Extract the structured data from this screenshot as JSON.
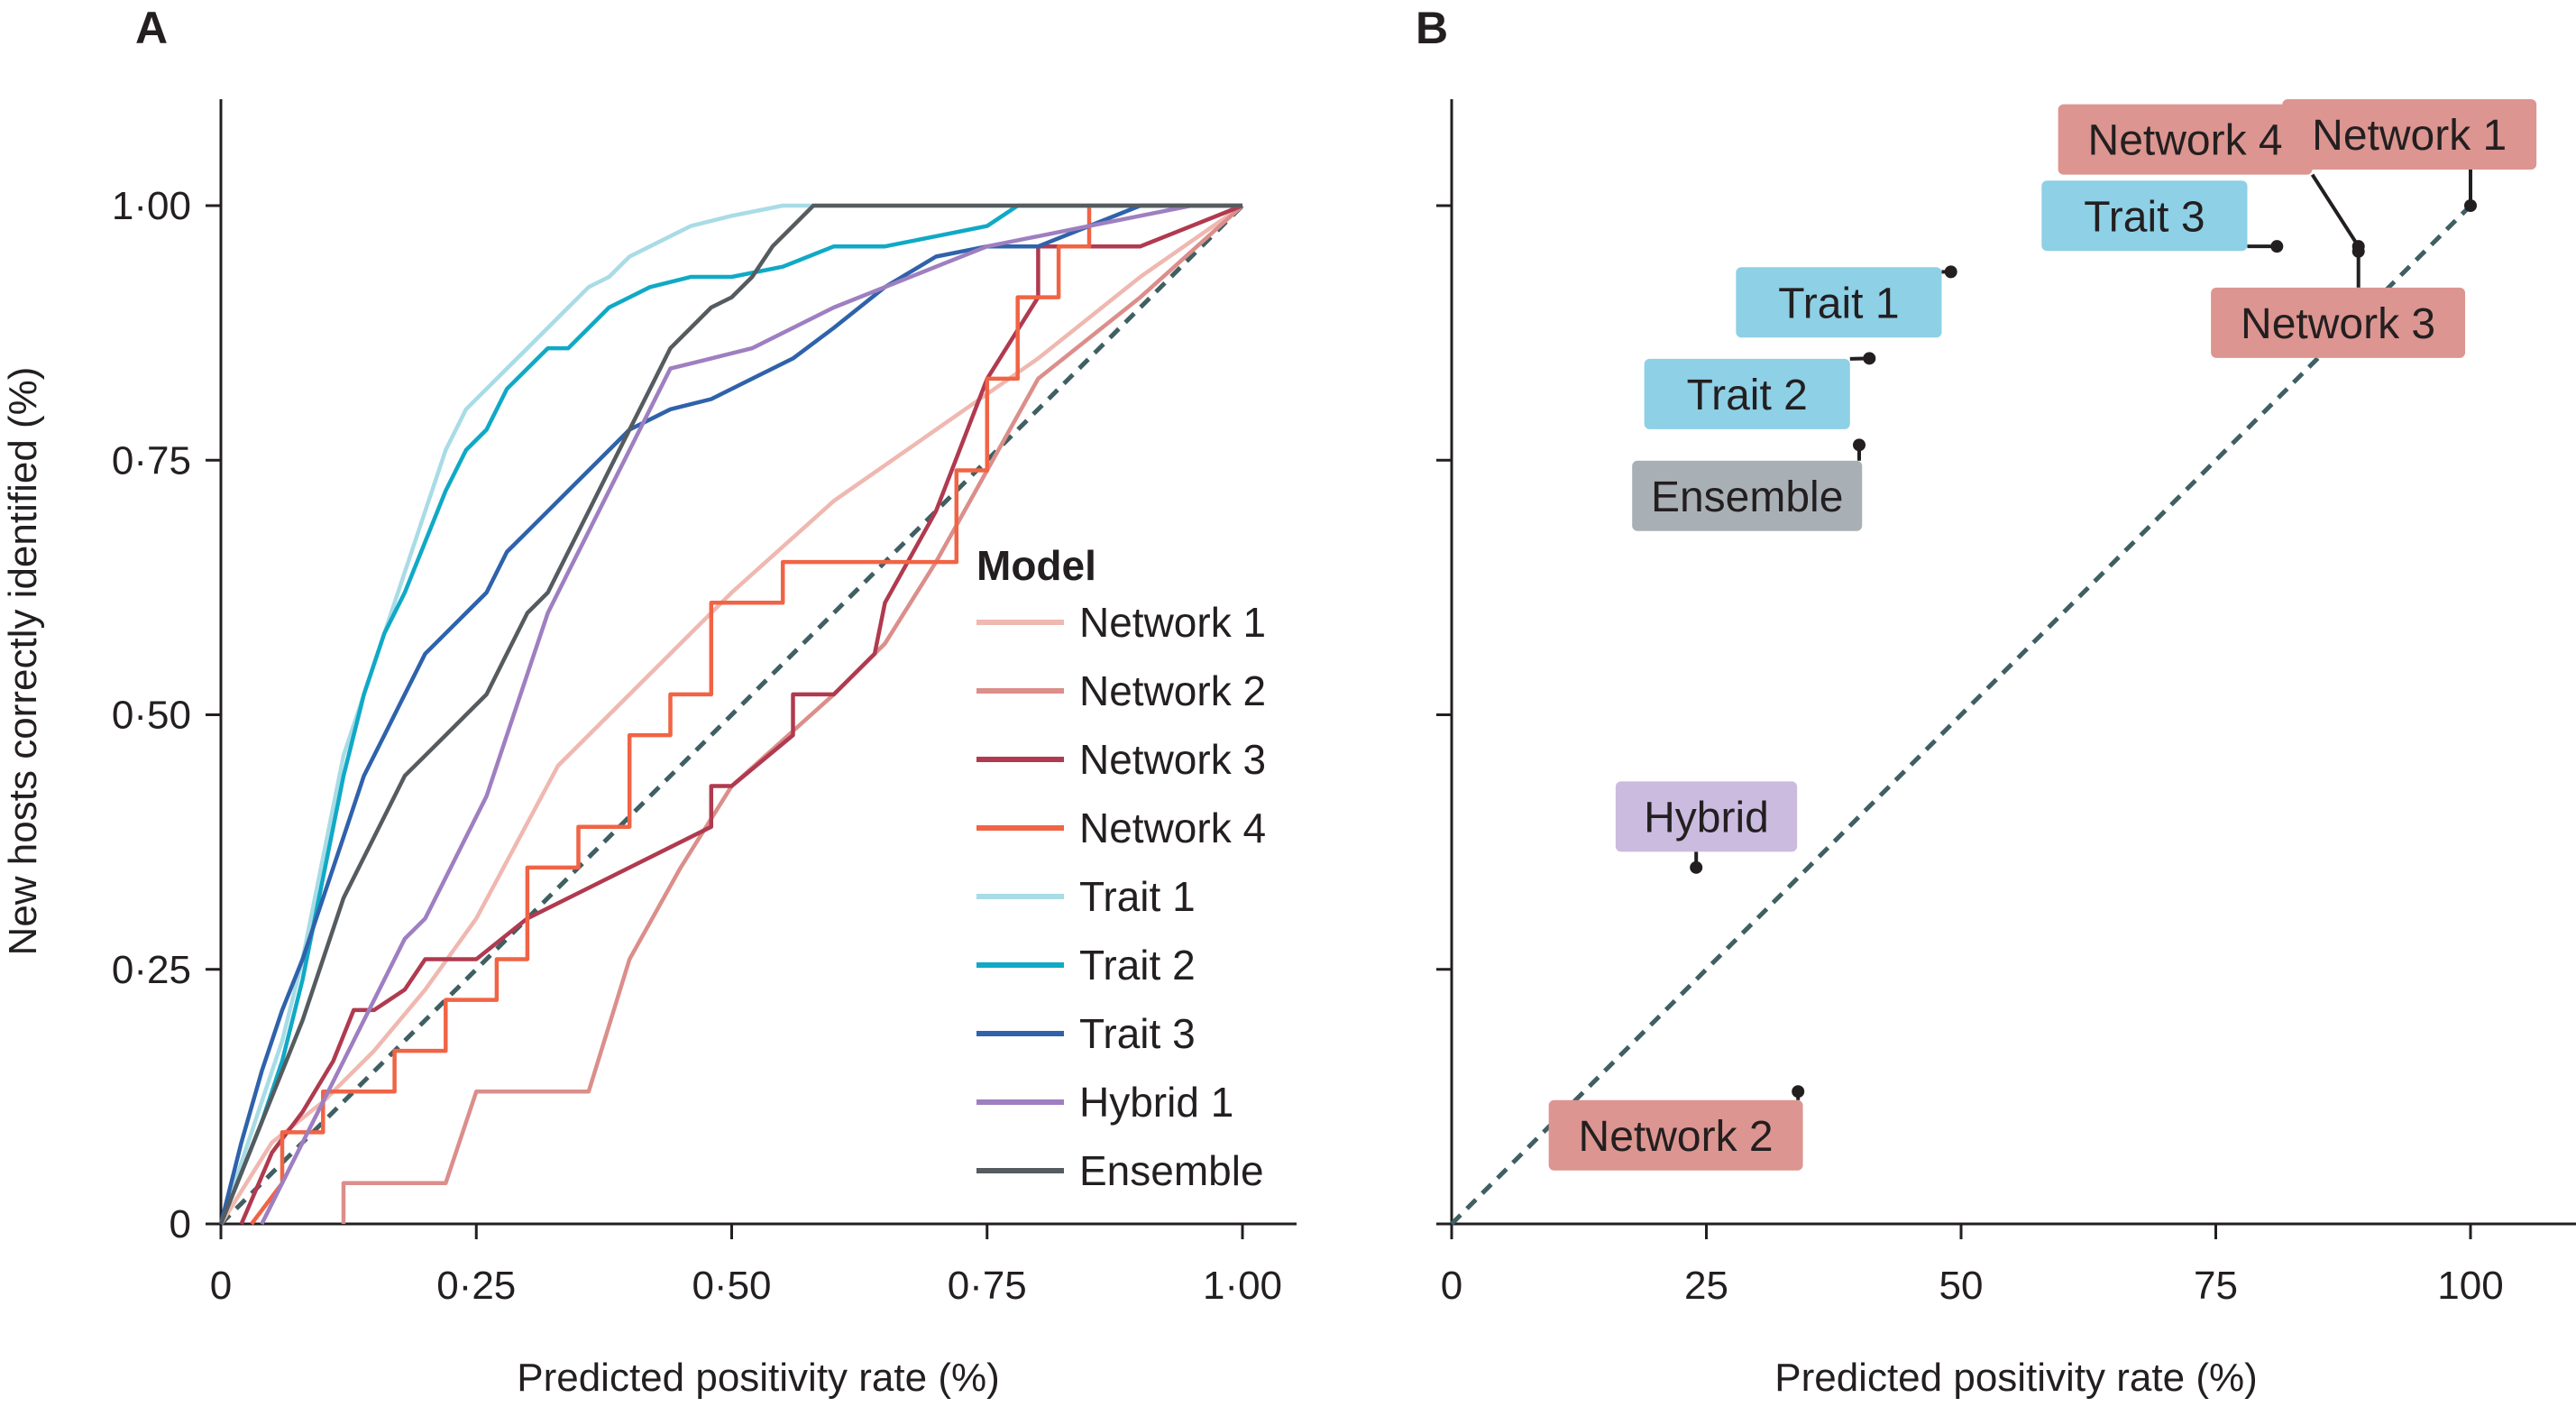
{
  "chart_data": [
    {
      "panel": "A",
      "type": "line",
      "xlabel": "Predicted positivity rate (%)",
      "ylabel": "New hosts correctly identified (%)",
      "xlim": [
        0,
        1
      ],
      "ylim": [
        0,
        1
      ],
      "xticks": [
        0,
        0.25,
        0.5,
        0.75,
        1.0
      ],
      "xtick_labels": [
        "0",
        "0·25",
        "0·50",
        "0·75",
        "1·00"
      ],
      "yticks": [
        0,
        0.25,
        0.5,
        0.75,
        1.0
      ],
      "ytick_labels": [
        "0",
        "0·25",
        "0·50",
        "0·75",
        "1·00"
      ],
      "legend": {
        "title": "Model",
        "placement": "right"
      },
      "reference_line": {
        "style": "dashed",
        "color": "#3f5f63",
        "from": [
          0,
          0
        ],
        "to": [
          1,
          1
        ]
      },
      "series": [
        {
          "name": "Network 1",
          "color": "#efb8b0",
          "x": [
            0,
            0.05,
            0.1,
            0.15,
            0.2,
            0.25,
            0.33,
            0.4,
            0.5,
            0.6,
            0.7,
            0.8,
            0.9,
            1.0
          ],
          "y": [
            0,
            0.08,
            0.12,
            0.17,
            0.23,
            0.3,
            0.45,
            0.52,
            0.62,
            0.71,
            0.78,
            0.85,
            0.93,
            1.0
          ]
        },
        {
          "name": "Network 2",
          "color": "#db8e8a",
          "x": [
            0.12,
            0.12,
            0.22,
            0.25,
            0.36,
            0.4,
            0.45,
            0.5,
            0.6,
            0.65,
            0.7,
            0.75,
            0.8,
            0.9,
            1.0
          ],
          "y": [
            0,
            0.04,
            0.04,
            0.13,
            0.13,
            0.26,
            0.35,
            0.43,
            0.52,
            0.57,
            0.65,
            0.74,
            0.83,
            0.91,
            1.0
          ]
        },
        {
          "name": "Network 3",
          "color": "#b03a4f",
          "x": [
            0.02,
            0.05,
            0.08,
            0.11,
            0.13,
            0.15,
            0.18,
            0.2,
            0.25,
            0.3,
            0.4,
            0.48,
            0.48,
            0.5,
            0.56,
            0.56,
            0.6,
            0.64,
            0.65,
            0.7,
            0.75,
            0.8,
            0.8,
            0.9,
            1.0
          ],
          "y": [
            0,
            0.07,
            0.11,
            0.16,
            0.21,
            0.21,
            0.23,
            0.26,
            0.26,
            0.3,
            0.35,
            0.39,
            0.43,
            0.43,
            0.48,
            0.52,
            0.52,
            0.56,
            0.61,
            0.7,
            0.83,
            0.91,
            0.96,
            0.96,
            1.0
          ]
        },
        {
          "name": "Network 4",
          "color": "#f06445",
          "x": [
            0.03,
            0.06,
            0.06,
            0.1,
            0.1,
            0.17,
            0.17,
            0.22,
            0.22,
            0.27,
            0.27,
            0.3,
            0.3,
            0.35,
            0.35,
            0.4,
            0.4,
            0.44,
            0.44,
            0.48,
            0.48,
            0.55,
            0.55,
            0.72,
            0.72,
            0.75,
            0.75,
            0.78,
            0.78,
            0.82,
            0.82,
            0.85,
            0.85,
            1.0
          ],
          "y": [
            0,
            0.04,
            0.09,
            0.09,
            0.13,
            0.13,
            0.17,
            0.17,
            0.22,
            0.22,
            0.26,
            0.26,
            0.35,
            0.35,
            0.39,
            0.39,
            0.48,
            0.48,
            0.52,
            0.52,
            0.61,
            0.61,
            0.65,
            0.65,
            0.74,
            0.74,
            0.83,
            0.83,
            0.91,
            0.91,
            0.96,
            0.96,
            1.0,
            1.0
          ]
        },
        {
          "name": "Trait 1",
          "color": "#a8dce6",
          "x": [
            0,
            0.02,
            0.04,
            0.06,
            0.08,
            0.1,
            0.12,
            0.14,
            0.16,
            0.18,
            0.2,
            0.22,
            0.24,
            0.26,
            0.28,
            0.3,
            0.32,
            0.34,
            0.36,
            0.38,
            0.4,
            0.42,
            0.44,
            0.46,
            0.5,
            0.55,
            0.6,
            0.65,
            0.7,
            0.75,
            0.8,
            0.9,
            1.0
          ],
          "y": [
            0,
            0.06,
            0.12,
            0.18,
            0.26,
            0.36,
            0.46,
            0.52,
            0.58,
            0.64,
            0.7,
            0.76,
            0.8,
            0.82,
            0.84,
            0.86,
            0.88,
            0.9,
            0.92,
            0.93,
            0.95,
            0.96,
            0.97,
            0.98,
            0.99,
            1.0,
            1.0,
            1.0,
            1.0,
            1.0,
            1.0,
            1.0,
            1.0
          ]
        },
        {
          "name": "Trait 2",
          "color": "#10a9c6",
          "x": [
            0,
            0.02,
            0.04,
            0.06,
            0.08,
            0.1,
            0.12,
            0.14,
            0.16,
            0.18,
            0.2,
            0.22,
            0.24,
            0.26,
            0.28,
            0.3,
            0.32,
            0.34,
            0.36,
            0.38,
            0.4,
            0.42,
            0.46,
            0.5,
            0.55,
            0.6,
            0.65,
            0.7,
            0.75,
            0.78,
            0.8,
            0.85,
            0.9,
            1.0
          ],
          "y": [
            0,
            0.05,
            0.1,
            0.16,
            0.24,
            0.34,
            0.44,
            0.52,
            0.58,
            0.62,
            0.67,
            0.72,
            0.76,
            0.78,
            0.82,
            0.84,
            0.86,
            0.86,
            0.88,
            0.9,
            0.91,
            0.92,
            0.93,
            0.93,
            0.94,
            0.96,
            0.96,
            0.97,
            0.98,
            1.0,
            1.0,
            1.0,
            1.0,
            1.0
          ]
        },
        {
          "name": "Trait 3",
          "color": "#2f62ab",
          "x": [
            0,
            0.02,
            0.04,
            0.06,
            0.08,
            0.1,
            0.12,
            0.14,
            0.16,
            0.18,
            0.2,
            0.22,
            0.24,
            0.26,
            0.28,
            0.3,
            0.32,
            0.34,
            0.36,
            0.38,
            0.4,
            0.44,
            0.48,
            0.52,
            0.56,
            0.6,
            0.65,
            0.7,
            0.75,
            0.8,
            0.85,
            0.9,
            1.0
          ],
          "y": [
            0,
            0.08,
            0.15,
            0.21,
            0.26,
            0.32,
            0.38,
            0.44,
            0.48,
            0.52,
            0.56,
            0.58,
            0.6,
            0.62,
            0.66,
            0.68,
            0.7,
            0.72,
            0.74,
            0.76,
            0.78,
            0.8,
            0.81,
            0.83,
            0.85,
            0.88,
            0.92,
            0.95,
            0.96,
            0.96,
            0.98,
            1.0,
            1.0
          ]
        },
        {
          "name": "Hybrid 1",
          "color": "#9e7fc0",
          "x": [
            0.04,
            0.06,
            0.08,
            0.1,
            0.12,
            0.14,
            0.16,
            0.18,
            0.2,
            0.22,
            0.24,
            0.26,
            0.28,
            0.3,
            0.32,
            0.34,
            0.36,
            0.38,
            0.4,
            0.42,
            0.44,
            0.48,
            0.52,
            0.56,
            0.6,
            0.65,
            0.7,
            0.75,
            0.8,
            0.85,
            0.9,
            0.95,
            1.0
          ],
          "y": [
            0,
            0.04,
            0.08,
            0.12,
            0.16,
            0.2,
            0.24,
            0.28,
            0.3,
            0.34,
            0.38,
            0.42,
            0.48,
            0.54,
            0.6,
            0.64,
            0.68,
            0.72,
            0.76,
            0.8,
            0.84,
            0.85,
            0.86,
            0.88,
            0.9,
            0.92,
            0.94,
            0.96,
            0.97,
            0.98,
            0.99,
            1.0,
            1.0
          ]
        },
        {
          "name": "Ensemble",
          "color": "#555b5f",
          "x": [
            0,
            0.02,
            0.04,
            0.06,
            0.08,
            0.1,
            0.12,
            0.14,
            0.16,
            0.18,
            0.2,
            0.22,
            0.24,
            0.26,
            0.28,
            0.3,
            0.32,
            0.34,
            0.36,
            0.38,
            0.4,
            0.42,
            0.44,
            0.46,
            0.48,
            0.5,
            0.52,
            0.54,
            0.56,
            0.58,
            0.65,
            0.75,
            0.85,
            1.0
          ],
          "y": [
            0,
            0.05,
            0.1,
            0.15,
            0.2,
            0.26,
            0.32,
            0.36,
            0.4,
            0.44,
            0.46,
            0.48,
            0.5,
            0.52,
            0.56,
            0.6,
            0.62,
            0.66,
            0.7,
            0.74,
            0.78,
            0.82,
            0.86,
            0.88,
            0.9,
            0.91,
            0.93,
            0.96,
            0.98,
            1.0,
            1.0,
            1.0,
            1.0,
            1.0
          ]
        }
      ]
    },
    {
      "panel": "B",
      "type": "scatter",
      "xlabel": "Predicted positivity rate (%)",
      "ylabel": "",
      "xlim": [
        0,
        110
      ],
      "ylim": [
        0,
        1
      ],
      "xticks": [
        0,
        25,
        50,
        75,
        100
      ],
      "xtick_labels": [
        "0",
        "25",
        "50",
        "75",
        "100"
      ],
      "yticks": [
        0,
        0.25,
        0.5,
        0.75,
        1.0
      ],
      "reference_line": {
        "style": "dashed",
        "color": "#3f5f63",
        "from": [
          0,
          0
        ],
        "to": [
          100,
          1
        ]
      },
      "points": [
        {
          "name": "Network 1",
          "x": 100,
          "y": 1.0,
          "color": "#dc9590",
          "label_x": 94,
          "label_y": 1.07
        },
        {
          "name": "Network 4",
          "x": 89,
          "y": 0.96,
          "color": "#dc9590",
          "label_x": 72,
          "label_y": 1.065
        },
        {
          "name": "Trait 3",
          "x": 81,
          "y": 0.96,
          "color": "#8ed0e6",
          "label_x": 68,
          "label_y": 0.99
        },
        {
          "name": "Network 3",
          "x": 89,
          "y": 0.955,
          "color": "#dc9590",
          "label_x": 87,
          "label_y": 0.885
        },
        {
          "name": "Trait 1",
          "x": 49,
          "y": 0.935,
          "color": "#8ed0e6",
          "label_x": 38,
          "label_y": 0.905
        },
        {
          "name": "Trait 2",
          "x": 41,
          "y": 0.85,
          "color": "#8ed0e6",
          "label_x": 29,
          "label_y": 0.815
        },
        {
          "name": "Ensemble",
          "x": 40,
          "y": 0.765,
          "color": "#a9b0b5",
          "label_x": 29,
          "label_y": 0.715
        },
        {
          "name": "Hybrid",
          "x": 24,
          "y": 0.35,
          "color": "#cbbbdf",
          "label_x": 25,
          "label_y": 0.4
        },
        {
          "name": "Network 2",
          "x": 34,
          "y": 0.13,
          "color": "#dc9590",
          "label_x": 22,
          "label_y": 0.087
        }
      ]
    }
  ]
}
